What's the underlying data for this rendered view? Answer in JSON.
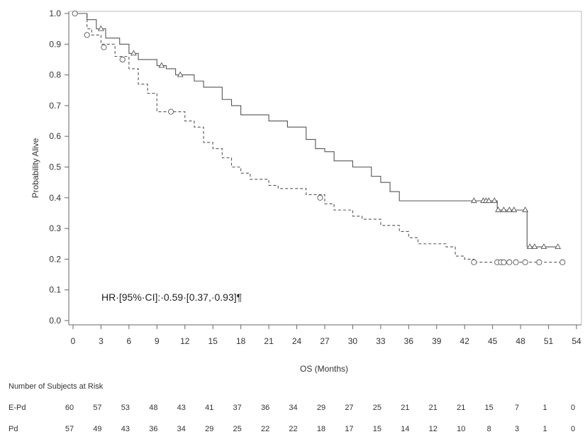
{
  "chart_data": {
    "type": "line",
    "title": "",
    "xlabel": "OS (Months)",
    "ylabel": "Probability Alive",
    "xlim": [
      0,
      54
    ],
    "ylim": [
      0,
      1.0
    ],
    "x_ticks": [
      0,
      3,
      6,
      9,
      12,
      15,
      18,
      21,
      24,
      27,
      30,
      33,
      36,
      39,
      42,
      45,
      48,
      51,
      54
    ],
    "y_ticks": [
      0.0,
      0.1,
      0.2,
      0.3,
      0.4,
      0.5,
      0.6,
      0.7,
      0.8,
      0.9,
      1.0
    ],
    "y_tick_labels": [
      "0.0",
      "0.1",
      "0.2",
      "0.3",
      "0.4",
      "0.5",
      "0.6",
      "0.7",
      "0.8",
      "0.9",
      "1.0"
    ],
    "grid": false,
    "annotation": "HR·[95%·CI]:·0.59·[0.37,·0.93]¶",
    "series": [
      {
        "name": "E-Pd",
        "style": "solid",
        "marker": "triangle",
        "steps": [
          [
            0,
            1.0
          ],
          [
            1.5,
            0.98
          ],
          [
            2.5,
            0.95
          ],
          [
            3.5,
            0.92
          ],
          [
            5,
            0.9
          ],
          [
            6,
            0.87
          ],
          [
            7,
            0.85
          ],
          [
            9,
            0.83
          ],
          [
            10,
            0.82
          ],
          [
            11,
            0.8
          ],
          [
            13,
            0.78
          ],
          [
            14,
            0.76
          ],
          [
            16,
            0.72
          ],
          [
            17,
            0.7
          ],
          [
            18,
            0.67
          ],
          [
            21,
            0.65
          ],
          [
            23,
            0.63
          ],
          [
            25,
            0.59
          ],
          [
            26,
            0.56
          ],
          [
            27,
            0.55
          ],
          [
            28,
            0.52
          ],
          [
            30,
            0.5
          ],
          [
            32,
            0.47
          ],
          [
            33,
            0.45
          ],
          [
            34,
            0.42
          ],
          [
            35,
            0.39
          ],
          [
            45.5,
            0.36
          ],
          [
            48.7,
            0.24
          ],
          [
            52,
            0.24
          ]
        ],
        "censored": [
          [
            3,
            0.95
          ],
          [
            6.5,
            0.87
          ],
          [
            9.5,
            0.83
          ],
          [
            11.5,
            0.8
          ],
          [
            43,
            0.39
          ],
          [
            44,
            0.39
          ],
          [
            44.3,
            0.39
          ],
          [
            44.6,
            0.39
          ],
          [
            45.2,
            0.39
          ],
          [
            45.6,
            0.36
          ],
          [
            46.2,
            0.36
          ],
          [
            46.8,
            0.36
          ],
          [
            47.3,
            0.36
          ],
          [
            48.5,
            0.36
          ],
          [
            49,
            0.24
          ],
          [
            49.5,
            0.24
          ],
          [
            50.5,
            0.24
          ],
          [
            52,
            0.24
          ]
        ]
      },
      {
        "name": "Pd",
        "style": "dashed",
        "marker": "circle",
        "steps": [
          [
            0,
            1.0
          ],
          [
            1.5,
            0.95
          ],
          [
            2,
            0.93
          ],
          [
            3,
            0.9
          ],
          [
            4.5,
            0.86
          ],
          [
            6,
            0.82
          ],
          [
            7,
            0.77
          ],
          [
            8,
            0.74
          ],
          [
            9,
            0.68
          ],
          [
            12,
            0.65
          ],
          [
            13,
            0.63
          ],
          [
            14,
            0.58
          ],
          [
            15,
            0.56
          ],
          [
            16,
            0.53
          ],
          [
            17,
            0.5
          ],
          [
            18,
            0.48
          ],
          [
            19,
            0.46
          ],
          [
            21,
            0.44
          ],
          [
            22,
            0.43
          ],
          [
            25,
            0.41
          ],
          [
            27,
            0.38
          ],
          [
            28,
            0.36
          ],
          [
            30,
            0.34
          ],
          [
            31,
            0.33
          ],
          [
            33,
            0.31
          ],
          [
            35,
            0.29
          ],
          [
            36,
            0.27
          ],
          [
            37,
            0.25
          ],
          [
            40,
            0.24
          ],
          [
            41,
            0.21
          ],
          [
            42,
            0.2
          ],
          [
            43,
            0.19
          ],
          [
            52.5,
            0.19
          ]
        ],
        "censored": [
          [
            0.2,
            1.0
          ],
          [
            1.5,
            0.93
          ],
          [
            3.3,
            0.89
          ],
          [
            5.3,
            0.85
          ],
          [
            10.5,
            0.68
          ],
          [
            26.5,
            0.4
          ],
          [
            43,
            0.19
          ],
          [
            45.5,
            0.19
          ],
          [
            45.9,
            0.19
          ],
          [
            46.2,
            0.19
          ],
          [
            46.8,
            0.19
          ],
          [
            47.5,
            0.19
          ],
          [
            48.5,
            0.19
          ],
          [
            50,
            0.19
          ],
          [
            52.5,
            0.19
          ]
        ]
      }
    ]
  },
  "risk_table": {
    "title": "Number of Subjects at Risk",
    "rows": [
      {
        "label": "E-Pd",
        "values": [
          60,
          57,
          53,
          48,
          43,
          41,
          37,
          36,
          34,
          29,
          27,
          25,
          21,
          21,
          21,
          15,
          7,
          1,
          0
        ]
      },
      {
        "label": "Pd",
        "values": [
          57,
          49,
          43,
          36,
          34,
          29,
          25,
          22,
          22,
          18,
          17,
          15,
          14,
          12,
          10,
          8,
          3,
          1,
          0
        ]
      }
    ]
  }
}
